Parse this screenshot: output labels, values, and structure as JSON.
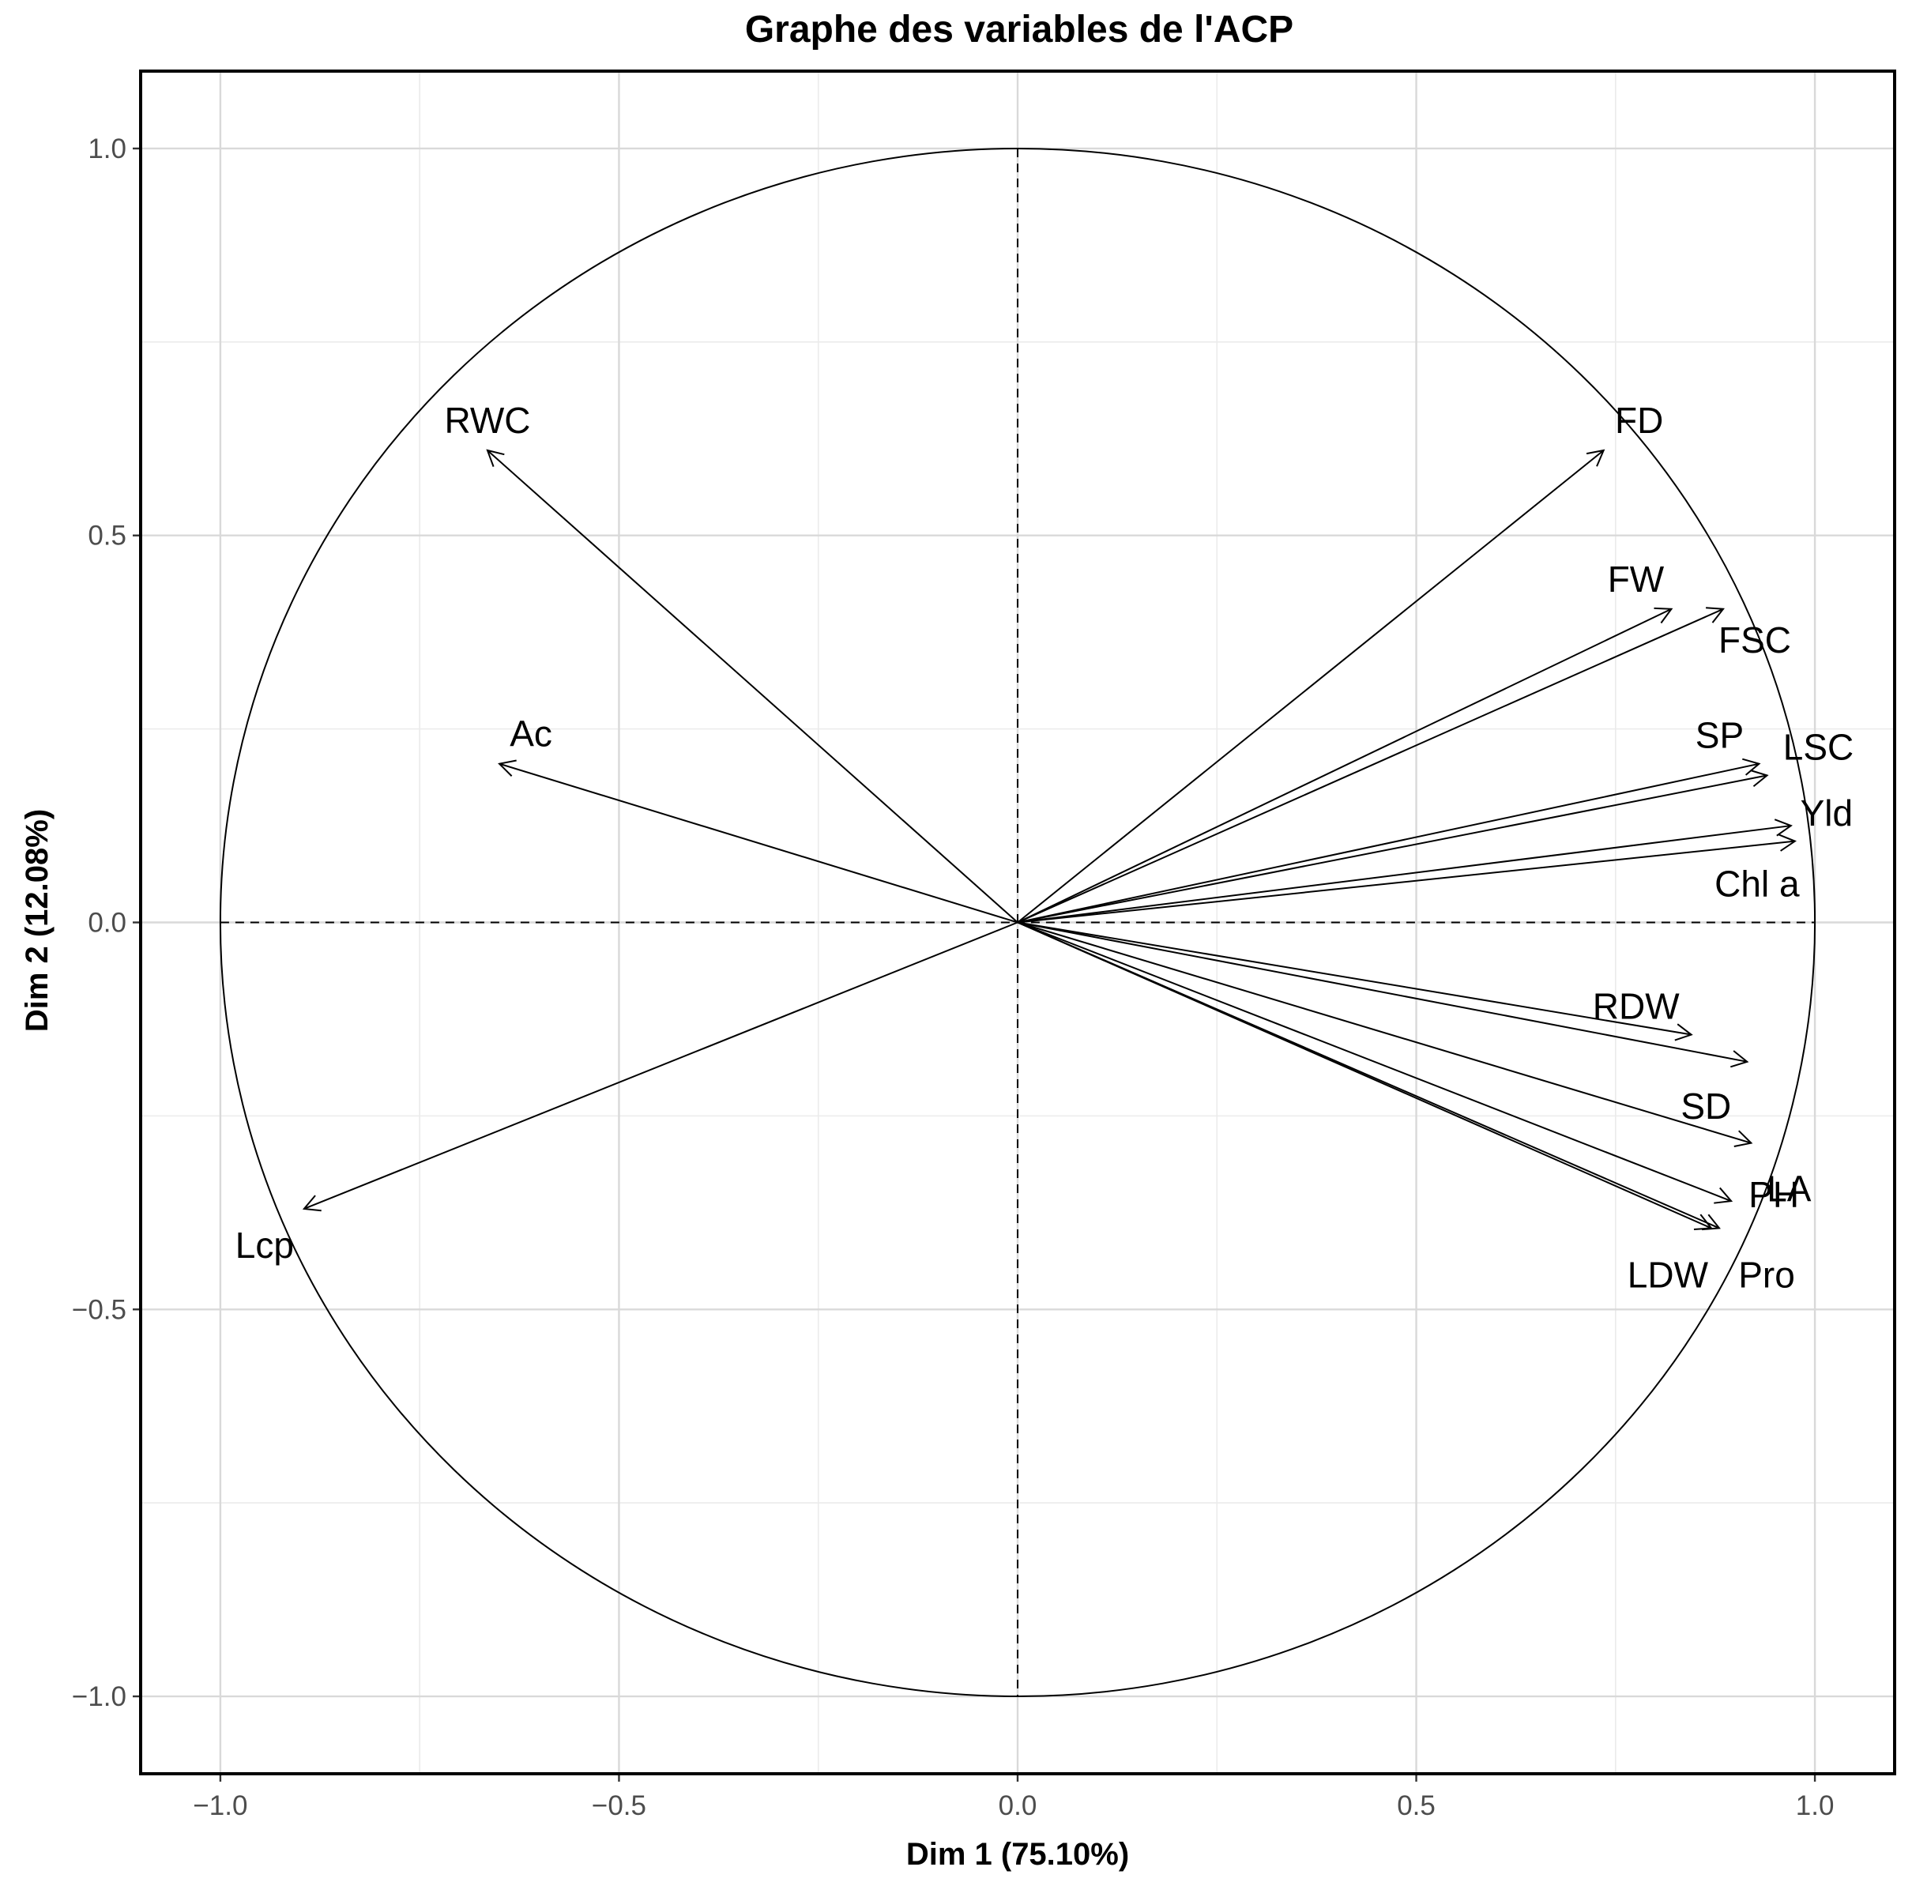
{
  "chart_data": {
    "type": "scatter",
    "title": "Graphe des variables de l'ACP",
    "xlabel": "Dim 1 (75.10%)",
    "ylabel": "Dim 2 (12.08%)",
    "xlim": [
      -1.1,
      1.1
    ],
    "ylim": [
      -1.1,
      1.1
    ],
    "xticks": [
      -1.0,
      -0.5,
      0.0,
      0.5,
      1.0
    ],
    "xtick_labels": [
      "−1.0",
      "−0.5",
      "0.0",
      "0.5",
      "1.0"
    ],
    "yticks": [
      -1.0,
      -0.5,
      0.0,
      0.5,
      1.0
    ],
    "ytick_labels": [
      "−1.0",
      "−0.5",
      "0.0",
      "0.5",
      "1.0"
    ],
    "grid": true,
    "correlation_circle": true,
    "variables": [
      {
        "name": "RWC",
        "x": -0.665,
        "y": 0.61
      },
      {
        "name": "Ac",
        "x": -0.65,
        "y": 0.205
      },
      {
        "name": "FD",
        "x": 0.735,
        "y": 0.61
      },
      {
        "name": "FW",
        "x": 0.82,
        "y": 0.405
      },
      {
        "name": "FSC",
        "x": 0.885,
        "y": 0.405
      },
      {
        "name": "SP",
        "x": 0.93,
        "y": 0.205
      },
      {
        "name": "LSC",
        "x": 0.94,
        "y": 0.19
      },
      {
        "name": "Yld",
        "x": 0.97,
        "y": 0.125
      },
      {
        "name": "Chl a",
        "x": 0.975,
        "y": 0.105
      },
      {
        "name": "RDW",
        "x": 0.845,
        "y": -0.145
      },
      {
        "name": "SD",
        "x": 0.915,
        "y": -0.18
      },
      {
        "name": "LA",
        "x": 0.92,
        "y": -0.285
      },
      {
        "name": "PH",
        "x": 0.895,
        "y": -0.36
      },
      {
        "name": "LDW",
        "x": 0.87,
        "y": -0.395
      },
      {
        "name": "Pro",
        "x": 0.88,
        "y": -0.395
      },
      {
        "name": "Lcp",
        "x": -0.895,
        "y": -0.37
      }
    ]
  }
}
